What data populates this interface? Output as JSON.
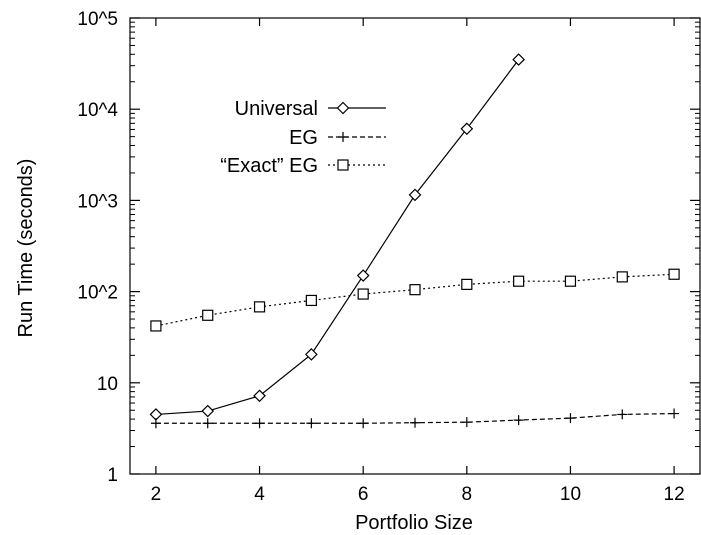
{
  "chart_data": {
    "type": "line",
    "xlabel": "Portfolio Size",
    "ylabel": "Run Time (seconds)",
    "xlim": [
      1.5,
      12.5
    ],
    "ylim": [
      1,
      100000
    ],
    "yscale": "log",
    "grid": false,
    "legend_position": "top-left",
    "x_ticks": [
      2,
      4,
      6,
      8,
      10,
      12
    ],
    "x_tick_labels": [
      "2",
      "4",
      "6",
      "8",
      "10",
      "12"
    ],
    "y_ticks": [
      1,
      10,
      100,
      1000,
      10000,
      100000
    ],
    "y_tick_labels": [
      "1",
      "10",
      "10^2",
      "10^3",
      "10^4",
      "10^5"
    ],
    "series": [
      {
        "name": "Universal",
        "marker": "diamond",
        "dash": "solid",
        "x": [
          2,
          3,
          4,
          5,
          6,
          7,
          8,
          9
        ],
        "y": [
          4.5,
          4.9,
          7.2,
          20.5,
          150,
          1150,
          6100,
          35000
        ]
      },
      {
        "name": "EG",
        "marker": "plus",
        "dash": "dashed",
        "x": [
          2,
          3,
          4,
          5,
          6,
          7,
          8,
          9,
          10,
          11,
          12
        ],
        "y": [
          3.6,
          3.6,
          3.6,
          3.6,
          3.6,
          3.65,
          3.7,
          3.9,
          4.1,
          4.5,
          4.6
        ]
      },
      {
        "name": "“Exact” EG",
        "marker": "square",
        "dash": "dotted",
        "x": [
          2,
          3,
          4,
          5,
          6,
          7,
          8,
          9,
          10,
          11,
          12
        ],
        "y": [
          42,
          55,
          68,
          80,
          94,
          105,
          120,
          130,
          130,
          145,
          155
        ]
      }
    ]
  }
}
